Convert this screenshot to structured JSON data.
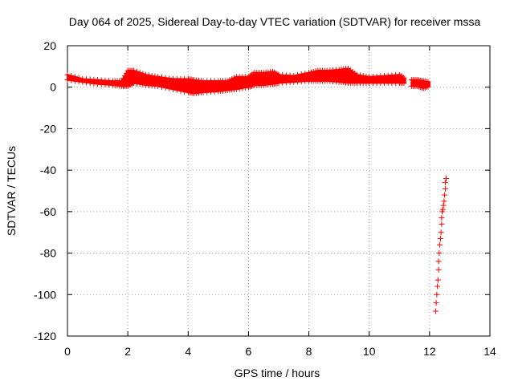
{
  "chart_data": {
    "type": "scatter",
    "title": "Day 064 of 2025, Sidereal Day-to-day VTEC variation (SDTVAR) for receiver mssa",
    "xlabel": "GPS time / hours",
    "ylabel": "SDTVAR / TECUs",
    "xlim": [
      0,
      14
    ],
    "ylim": [
      -120,
      20
    ],
    "xticks": [
      "0",
      "2",
      "4",
      "6",
      "8",
      "10",
      "12",
      "14"
    ],
    "yticks": [
      "20",
      "0",
      "-20",
      "-40",
      "-60",
      "-80",
      "-100",
      "-120"
    ],
    "grid": true,
    "marker": "+",
    "series": [
      {
        "name": "SDTVAR band (min/max envelope)",
        "color": "#ff0000",
        "x": [
          0.0,
          0.5,
          1.0,
          1.5,
          1.8,
          2.0,
          2.2,
          2.6,
          3.0,
          3.5,
          4.0,
          4.2,
          4.5,
          5.0,
          5.3,
          5.6,
          6.0,
          6.2,
          6.5,
          6.8,
          7.0,
          7.5,
          8.0,
          8.3,
          8.6,
          9.0,
          9.3,
          9.6,
          10.0,
          10.5,
          11.0,
          11.2
        ],
        "ymin": [
          3.5,
          2.5,
          1.5,
          1.0,
          0.5,
          0.5,
          2.0,
          1.0,
          0.5,
          -1.0,
          -2.5,
          -3.0,
          -2.5,
          -2.0,
          -1.5,
          -1.0,
          0.0,
          1.0,
          1.0,
          1.5,
          2.0,
          2.5,
          3.0,
          3.0,
          3.0,
          2.5,
          2.0,
          2.0,
          2.0,
          2.0,
          2.0,
          2.0
        ],
        "ymax": [
          6.0,
          4.0,
          3.5,
          3.0,
          3.0,
          8.0,
          8.0,
          6.0,
          5.0,
          4.0,
          4.0,
          3.5,
          3.0,
          3.0,
          3.0,
          5.0,
          5.0,
          7.0,
          7.0,
          7.5,
          6.0,
          5.5,
          7.0,
          8.0,
          8.0,
          8.5,
          9.0,
          6.0,
          5.0,
          5.5,
          6.0,
          4.0
        ]
      },
      {
        "name": "SDTVAR segment near 12 h",
        "color": "#ff0000",
        "x": [
          11.4,
          11.6,
          11.8,
          12.0
        ],
        "ymin": [
          0.5,
          0.5,
          -0.5,
          0.5
        ],
        "ymax": [
          3.5,
          3.5,
          3.0,
          2.5
        ]
      },
      {
        "name": "SDTVAR steep drop",
        "color": "#ff0000",
        "x": [
          12.2,
          12.22,
          12.24,
          12.26,
          12.28,
          12.3,
          12.3,
          12.32,
          12.34,
          12.36,
          12.38,
          12.4,
          12.4,
          12.42,
          12.44,
          12.46,
          12.48,
          12.5,
          12.52,
          12.52,
          12.55
        ],
        "y": [
          -108,
          -104,
          -100,
          -96,
          -93,
          -88,
          -84,
          -80,
          -76,
          -73,
          -70,
          -66,
          -63,
          -60,
          -59,
          -57,
          -55,
          -52,
          -49,
          -46,
          -44
        ]
      }
    ]
  }
}
